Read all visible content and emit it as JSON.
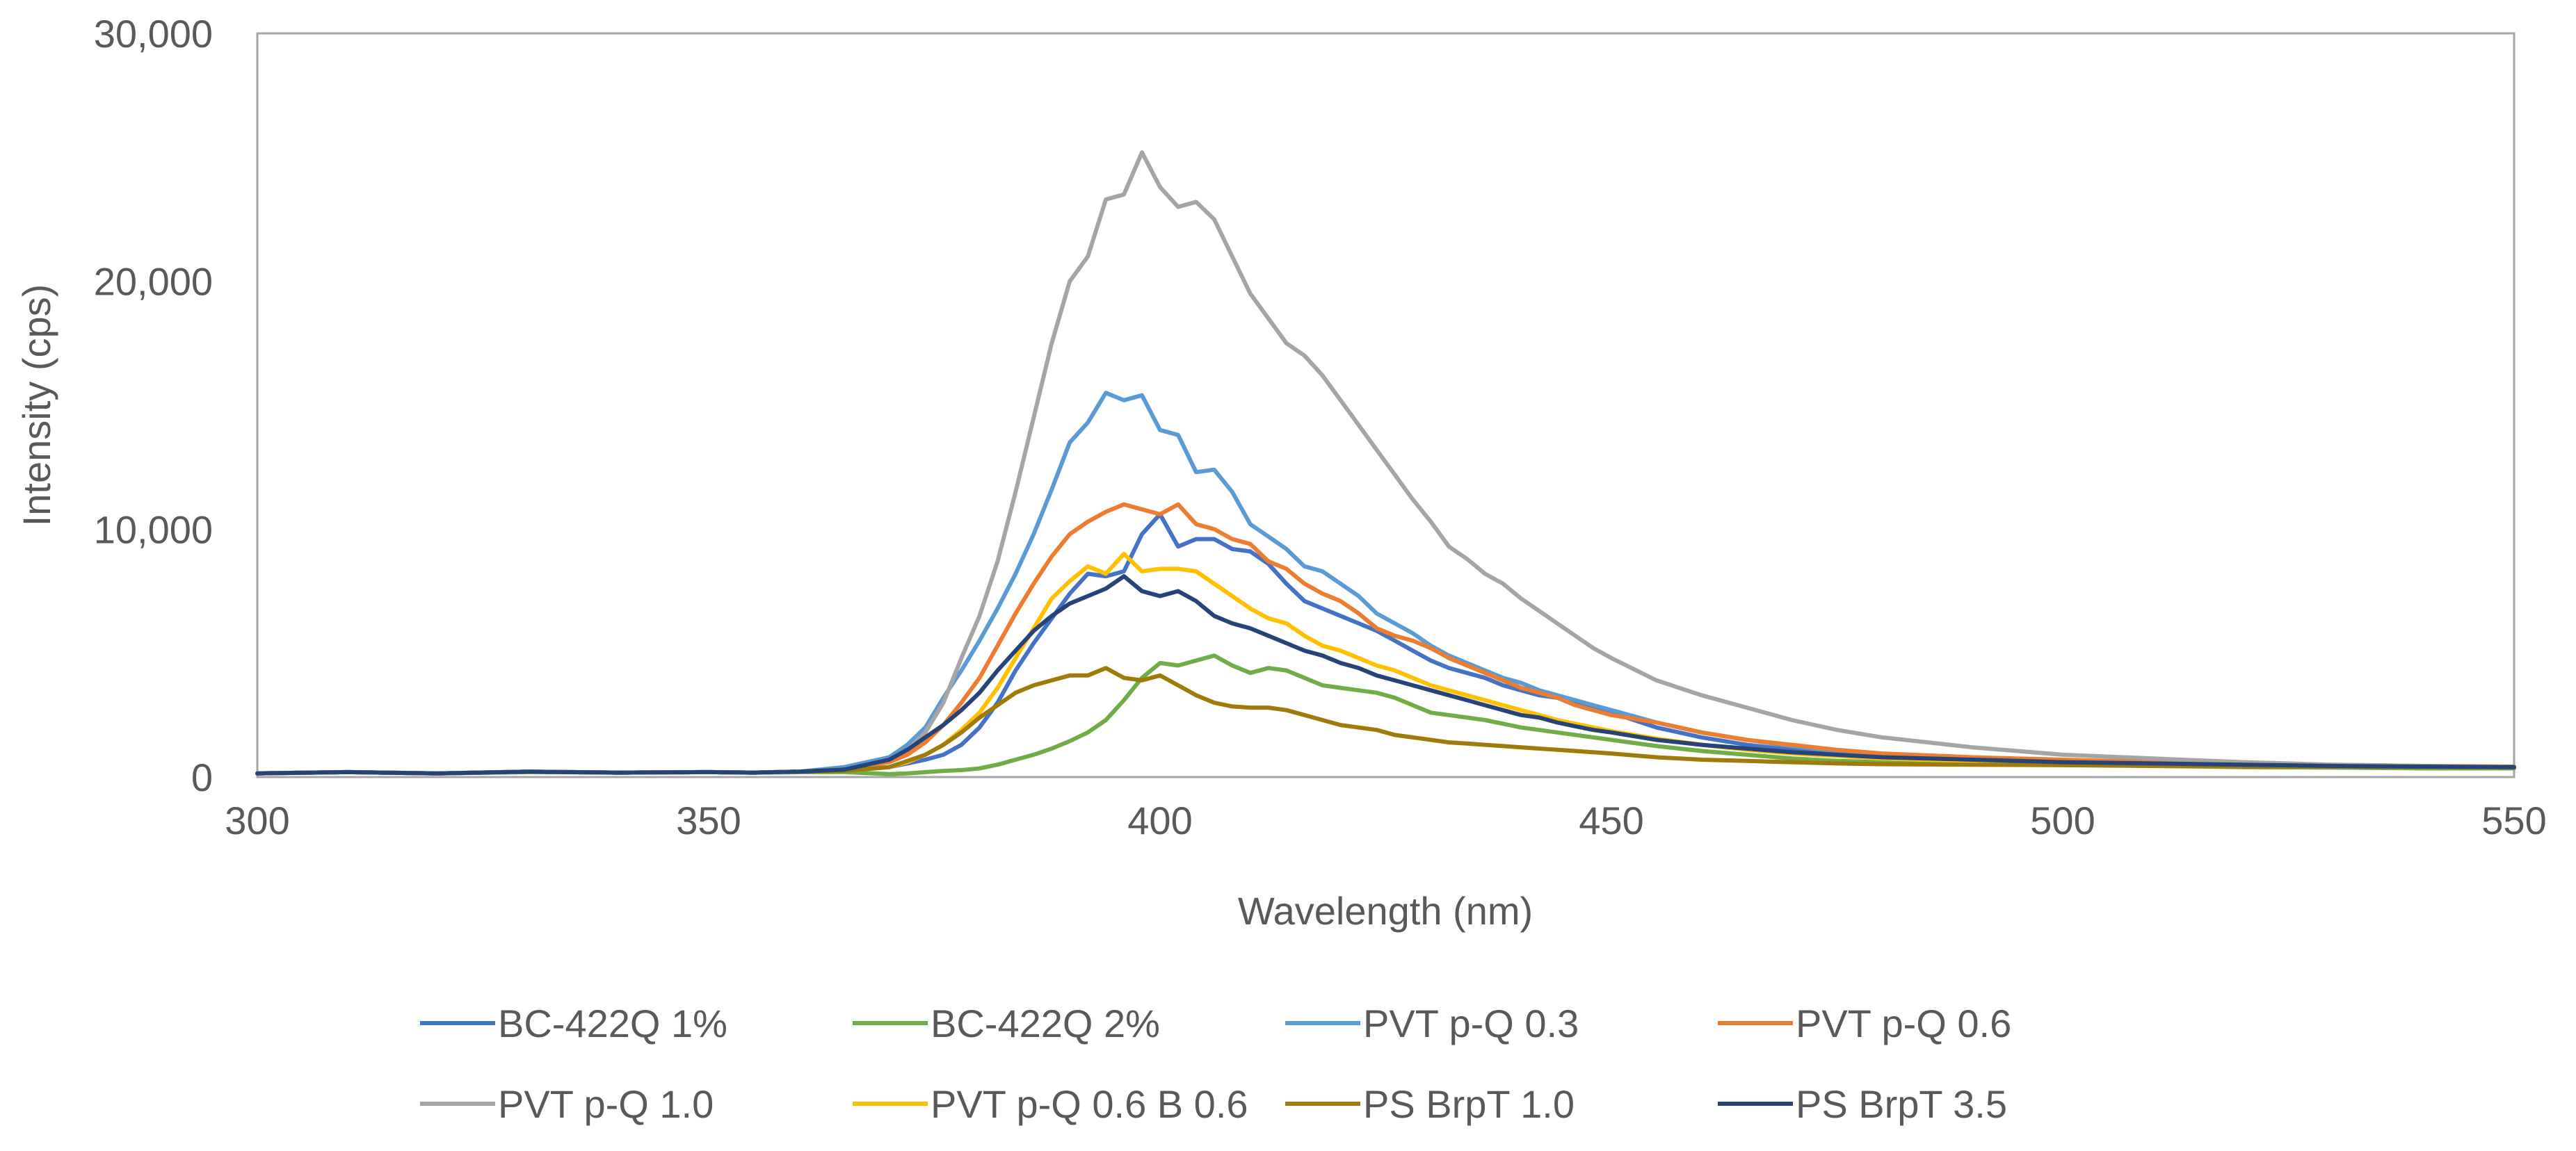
{
  "chart_data": {
    "type": "line",
    "title": "",
    "xlabel": "Wavelength (nm)",
    "ylabel": "Intensity (cps)",
    "xlim": [
      300,
      550
    ],
    "ylim": [
      0,
      30000
    ],
    "x_ticks": [
      300,
      350,
      400,
      450,
      500,
      550
    ],
    "y_ticks": [
      0,
      10000,
      20000,
      30000
    ],
    "x_tick_labels": [
      "300",
      "350",
      "400",
      "450",
      "500",
      "550"
    ],
    "y_tick_labels": [
      "0",
      "10,000",
      "20,000",
      "30,000"
    ],
    "grid": false,
    "legend_position": "bottom",
    "series": [
      {
        "name": "BC-422Q 1%",
        "color": "#4472C4",
        "x": [
          300,
          310,
          320,
          330,
          340,
          350,
          355,
          360,
          365,
          370,
          372,
          374,
          376,
          378,
          380,
          382,
          384,
          386,
          388,
          390,
          392,
          394,
          396,
          398,
          400,
          402,
          404,
          406,
          408,
          410,
          412,
          414,
          416,
          418,
          420,
          422,
          424,
          426,
          428,
          430,
          432,
          434,
          436,
          438,
          440,
          442,
          444,
          446,
          448,
          450,
          455,
          460,
          465,
          470,
          475,
          480,
          490,
          500,
          510,
          520,
          530,
          540,
          550
        ],
        "y": [
          150,
          200,
          150,
          220,
          180,
          200,
          180,
          220,
          260,
          400,
          550,
          700,
          900,
          1300,
          2000,
          3000,
          4300,
          5400,
          6400,
          7400,
          8200,
          8100,
          8300,
          9800,
          10600,
          9300,
          9600,
          9600,
          9200,
          9100,
          8600,
          7800,
          7100,
          6800,
          6500,
          6200,
          5900,
          5500,
          5100,
          4700,
          4400,
          4200,
          4000,
          3700,
          3500,
          3300,
          3200,
          3000,
          2800,
          2600,
          2000,
          1600,
          1300,
          1100,
          950,
          850,
          700,
          600,
          550,
          500,
          450,
          420,
          400
        ]
      },
      {
        "name": "BC-422Q 2%",
        "color": "#70AD47",
        "x": [
          300,
          310,
          320,
          330,
          340,
          350,
          355,
          360,
          365,
          370,
          372,
          374,
          376,
          378,
          380,
          382,
          384,
          386,
          388,
          390,
          392,
          394,
          396,
          398,
          400,
          402,
          404,
          406,
          408,
          410,
          412,
          414,
          416,
          418,
          420,
          422,
          424,
          426,
          428,
          430,
          432,
          434,
          436,
          438,
          440,
          442,
          444,
          446,
          448,
          450,
          455,
          460,
          465,
          470,
          475,
          480,
          490,
          500,
          510,
          520,
          530,
          540,
          550
        ],
        "y": [
          150,
          200,
          150,
          200,
          180,
          200,
          180,
          200,
          200,
          120,
          150,
          200,
          250,
          280,
          350,
          500,
          700,
          900,
          1150,
          1450,
          1800,
          2300,
          3100,
          4000,
          4600,
          4500,
          4700,
          4900,
          4500,
          4200,
          4400,
          4300,
          4000,
          3700,
          3600,
          3500,
          3400,
          3200,
          2900,
          2600,
          2500,
          2400,
          2300,
          2150,
          2000,
          1900,
          1800,
          1700,
          1600,
          1500,
          1250,
          1050,
          900,
          750,
          650,
          600,
          550,
          500,
          450,
          400,
          380,
          350,
          350
        ]
      },
      {
        "name": "PVT p-Q 0.3",
        "color": "#5B9BD5",
        "x": [
          300,
          310,
          320,
          330,
          340,
          350,
          355,
          360,
          365,
          370,
          372,
          374,
          376,
          378,
          380,
          382,
          384,
          386,
          388,
          390,
          392,
          394,
          396,
          398,
          400,
          402,
          404,
          406,
          408,
          410,
          412,
          414,
          416,
          418,
          420,
          422,
          424,
          426,
          428,
          430,
          432,
          434,
          436,
          438,
          440,
          442,
          444,
          446,
          448,
          450,
          455,
          460,
          465,
          470,
          475,
          480,
          490,
          500,
          510,
          520,
          530,
          540,
          550
        ],
        "y": [
          150,
          200,
          150,
          220,
          180,
          200,
          180,
          220,
          400,
          800,
          1300,
          2000,
          3200,
          4300,
          5500,
          6800,
          8200,
          9800,
          11600,
          13500,
          14300,
          15500,
          15200,
          15400,
          14000,
          13800,
          12300,
          12400,
          11500,
          10200,
          9700,
          9200,
          8500,
          8300,
          7800,
          7300,
          6600,
          6200,
          5800,
          5300,
          4900,
          4600,
          4300,
          4000,
          3800,
          3500,
          3300,
          3100,
          2900,
          2700,
          2200,
          1800,
          1500,
          1250,
          1050,
          900,
          750,
          650,
          550,
          500,
          450,
          420,
          400
        ]
      },
      {
        "name": "PVT p-Q 0.6",
        "color": "#ED7D31",
        "x": [
          300,
          310,
          320,
          330,
          340,
          350,
          355,
          360,
          365,
          370,
          372,
          374,
          376,
          378,
          380,
          382,
          384,
          386,
          388,
          390,
          392,
          394,
          396,
          398,
          400,
          402,
          404,
          406,
          408,
          410,
          412,
          414,
          416,
          418,
          420,
          422,
          424,
          426,
          428,
          430,
          432,
          434,
          436,
          438,
          440,
          442,
          444,
          446,
          448,
          450,
          455,
          460,
          465,
          470,
          475,
          480,
          490,
          500,
          510,
          520,
          530,
          540,
          550
        ],
        "y": [
          150,
          200,
          150,
          220,
          180,
          200,
          180,
          220,
          300,
          600,
          900,
          1400,
          2100,
          3000,
          4000,
          5300,
          6600,
          7800,
          8900,
          9800,
          10300,
          10700,
          11000,
          10800,
          10600,
          11000,
          10200,
          10000,
          9600,
          9400,
          8700,
          8400,
          7800,
          7400,
          7100,
          6600,
          6000,
          5700,
          5500,
          5200,
          4800,
          4500,
          4200,
          3900,
          3600,
          3400,
          3200,
          2900,
          2700,
          2500,
          2200,
          1800,
          1500,
          1300,
          1100,
          950,
          800,
          700,
          600,
          550,
          500,
          450,
          420
        ]
      },
      {
        "name": "PVT p-Q 1.0",
        "color": "#A5A5A5",
        "x": [
          300,
          310,
          320,
          330,
          340,
          350,
          355,
          360,
          365,
          370,
          372,
          374,
          376,
          378,
          380,
          382,
          384,
          386,
          388,
          390,
          392,
          394,
          396,
          398,
          400,
          402,
          404,
          406,
          408,
          410,
          412,
          414,
          416,
          418,
          420,
          422,
          424,
          426,
          428,
          430,
          432,
          434,
          436,
          438,
          440,
          442,
          444,
          446,
          448,
          450,
          455,
          460,
          465,
          470,
          475,
          480,
          490,
          500,
          510,
          520,
          530,
          540,
          550
        ],
        "y": [
          150,
          200,
          150,
          220,
          180,
          200,
          180,
          220,
          300,
          700,
          1100,
          1800,
          3000,
          4800,
          6500,
          8700,
          11500,
          14500,
          17500,
          20000,
          21000,
          23300,
          23500,
          25200,
          23800,
          23000,
          23200,
          22500,
          21000,
          19500,
          18500,
          17500,
          17000,
          16200,
          15200,
          14200,
          13200,
          12200,
          11200,
          10300,
          9300,
          8800,
          8200,
          7800,
          7200,
          6700,
          6200,
          5700,
          5200,
          4800,
          3900,
          3300,
          2800,
          2300,
          1900,
          1600,
          1200,
          900,
          750,
          600,
          500,
          450,
          400
        ]
      },
      {
        "name": "PVT p-Q 0.6 B 0.6",
        "color": "#FFC000",
        "x": [
          300,
          310,
          320,
          330,
          340,
          350,
          355,
          360,
          365,
          370,
          372,
          374,
          376,
          378,
          380,
          382,
          384,
          386,
          388,
          390,
          392,
          394,
          396,
          398,
          400,
          402,
          404,
          406,
          408,
          410,
          412,
          414,
          416,
          418,
          420,
          422,
          424,
          426,
          428,
          430,
          432,
          434,
          436,
          438,
          440,
          442,
          444,
          446,
          448,
          450,
          455,
          460,
          465,
          470,
          475,
          480,
          490,
          500,
          510,
          520,
          530,
          540,
          550
        ],
        "y": [
          150,
          200,
          150,
          220,
          180,
          200,
          180,
          220,
          250,
          400,
          600,
          900,
          1300,
          1900,
          2600,
          3600,
          4800,
          6000,
          7200,
          7900,
          8500,
          8200,
          9000,
          8300,
          8400,
          8400,
          8300,
          7800,
          7300,
          6800,
          6400,
          6200,
          5700,
          5300,
          5100,
          4800,
          4500,
          4300,
          4000,
          3700,
          3500,
          3300,
          3100,
          2900,
          2700,
          2500,
          2300,
          2150,
          2000,
          1850,
          1550,
          1300,
          1100,
          950,
          850,
          750,
          650,
          600,
          550,
          500,
          450,
          420,
          400
        ]
      },
      {
        "name": "PS BrpT 1.0",
        "color": "#9E7B0A",
        "x": [
          300,
          310,
          320,
          330,
          340,
          350,
          355,
          360,
          365,
          370,
          372,
          374,
          376,
          378,
          380,
          382,
          384,
          386,
          388,
          390,
          392,
          394,
          396,
          398,
          400,
          402,
          404,
          406,
          408,
          410,
          412,
          414,
          416,
          418,
          420,
          422,
          424,
          426,
          428,
          430,
          432,
          434,
          436,
          438,
          440,
          442,
          444,
          446,
          448,
          450,
          455,
          460,
          465,
          470,
          475,
          480,
          490,
          500,
          510,
          520,
          530,
          540,
          550
        ],
        "y": [
          150,
          200,
          150,
          220,
          180,
          200,
          180,
          220,
          250,
          400,
          650,
          900,
          1300,
          1800,
          2400,
          2900,
          3400,
          3700,
          3900,
          4100,
          4100,
          4400,
          4000,
          3900,
          4100,
          3700,
          3300,
          3000,
          2850,
          2800,
          2800,
          2700,
          2500,
          2300,
          2100,
          2000,
          1900,
          1700,
          1600,
          1500,
          1400,
          1350,
          1300,
          1250,
          1200,
          1150,
          1100,
          1050,
          1000,
          950,
          800,
          700,
          650,
          600,
          550,
          520,
          500,
          480,
          450,
          430,
          420,
          410,
          400
        ]
      },
      {
        "name": "PS BrpT 3.5",
        "color": "#264478",
        "x": [
          300,
          310,
          320,
          330,
          340,
          350,
          355,
          360,
          365,
          370,
          372,
          374,
          376,
          378,
          380,
          382,
          384,
          386,
          388,
          390,
          392,
          394,
          396,
          398,
          400,
          402,
          404,
          406,
          408,
          410,
          412,
          414,
          416,
          418,
          420,
          422,
          424,
          426,
          428,
          430,
          432,
          434,
          436,
          438,
          440,
          442,
          444,
          446,
          448,
          450,
          455,
          460,
          465,
          470,
          475,
          480,
          490,
          500,
          510,
          520,
          530,
          540,
          550
        ],
        "y": [
          150,
          200,
          150,
          220,
          180,
          200,
          180,
          220,
          300,
          700,
          1100,
          1600,
          2100,
          2700,
          3400,
          4300,
          5100,
          5900,
          6500,
          7000,
          7300,
          7600,
          8100,
          7500,
          7300,
          7500,
          7100,
          6500,
          6200,
          6000,
          5700,
          5400,
          5100,
          4900,
          4600,
          4400,
          4100,
          3900,
          3700,
          3500,
          3300,
          3100,
          2900,
          2700,
          2500,
          2400,
          2200,
          2050,
          1900,
          1800,
          1500,
          1300,
          1150,
          1000,
          900,
          800,
          700,
          600,
          550,
          500,
          450,
          420,
          400
        ]
      }
    ]
  }
}
